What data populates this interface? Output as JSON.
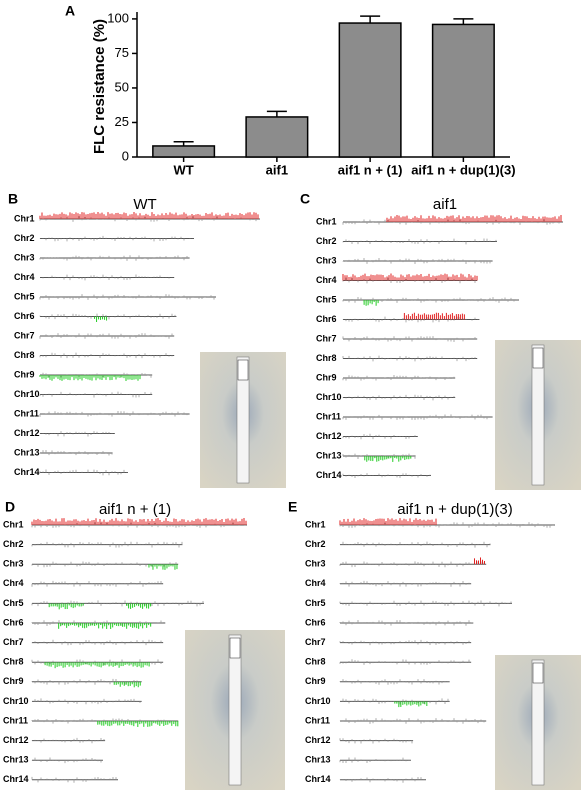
{
  "chart_data": {
    "type": "bar",
    "panel_label": "A",
    "y_label": "FLC resistance (%)",
    "categories": [
      "WT",
      "aif1",
      "aif1 n + (1)",
      "aif1 n + dup(1)(3)"
    ],
    "values": [
      8,
      29,
      97,
      96
    ],
    "errors": [
      3,
      4,
      5,
      4
    ],
    "color": "#8c8c8c",
    "ylim": [
      0,
      105
    ],
    "yticks": [
      0,
      25,
      50,
      75,
      100
    ]
  },
  "panels": [
    {
      "letter": "B",
      "title": "WT",
      "chromosomes": [
        "Chr1",
        "Chr2",
        "Chr3",
        "Chr4",
        "Chr5",
        "Chr6",
        "Chr7",
        "Chr8",
        "Chr9",
        "Chr10",
        "Chr11",
        "Chr12",
        "Chr13",
        "Chr14"
      ]
    },
    {
      "letter": "C",
      "title": "aif1",
      "chromosomes": [
        "Chr1",
        "Chr2",
        "Chr3",
        "Chr4",
        "Chr5",
        "Chr6",
        "Chr7",
        "Chr8",
        "Chr9",
        "Chr10",
        "Chr11",
        "Chr12",
        "Chr13",
        "Chr14"
      ]
    },
    {
      "letter": "D",
      "title": "aif1 n + (1)",
      "chromosomes": [
        "Chr1",
        "Chr2",
        "Chr3",
        "Chr4",
        "Chr5",
        "Chr6",
        "Chr7",
        "Chr8",
        "Chr9",
        "Chr10",
        "Chr11",
        "Chr12",
        "Chr13",
        "Chr14"
      ]
    },
    {
      "letter": "E",
      "title": "aif1 n + dup(1)(3)",
      "chromosomes": [
        "Chr1",
        "Chr2",
        "Chr3",
        "Chr4",
        "Chr5",
        "Chr6",
        "Chr7",
        "Chr8",
        "Chr9",
        "Chr10",
        "Chr11",
        "Chr12",
        "Chr13",
        "Chr14"
      ]
    }
  ]
}
